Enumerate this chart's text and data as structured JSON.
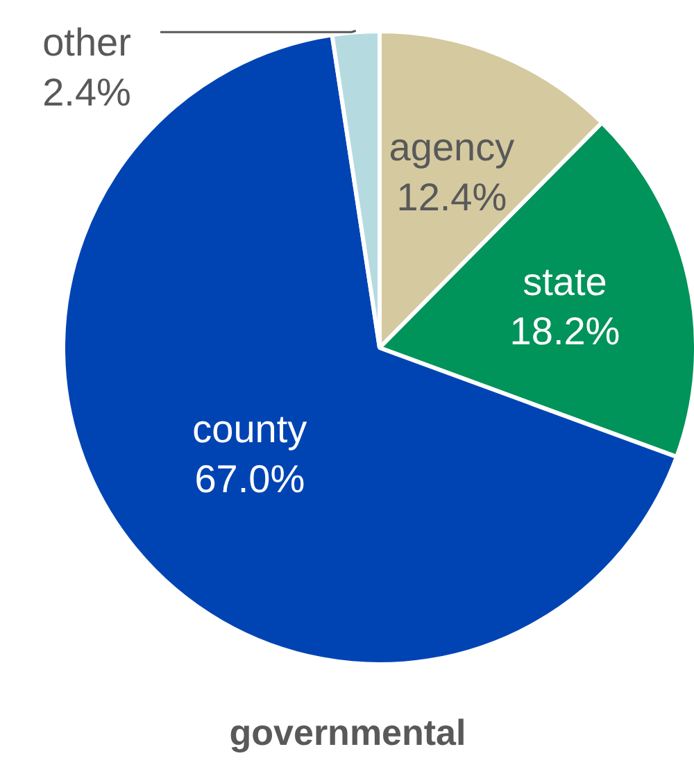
{
  "chart_data": {
    "type": "pie",
    "title": "governmental",
    "categories": [
      "agency",
      "state",
      "county",
      "other"
    ],
    "values": [
      12.4,
      18.2,
      67.0,
      2.4
    ],
    "colors": [
      "#d5c9a0",
      "#00935a",
      "#0044b4",
      "#b5dbe0"
    ],
    "value_labels": [
      "12.4%",
      "18.2%",
      "67.0%",
      "2.4%"
    ]
  }
}
